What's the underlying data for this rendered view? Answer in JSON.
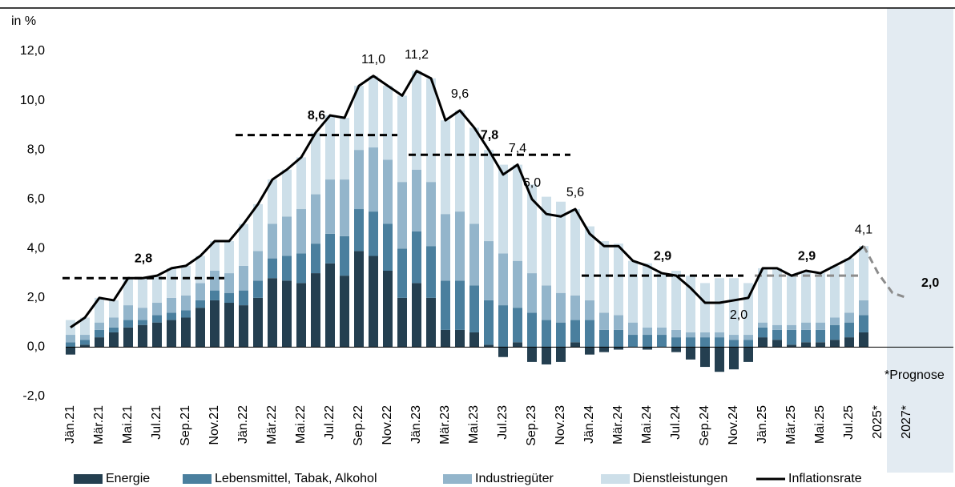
{
  "chart_data": {
    "type": "bar",
    "y_label": "in %",
    "note": "*Prognose",
    "ylim": [
      -2,
      12
    ],
    "yticks": [
      {
        "value": -2,
        "label": "-2,0"
      },
      {
        "value": 0,
        "label": "0,0"
      },
      {
        "value": 2,
        "label": "2,0"
      },
      {
        "value": 4,
        "label": "4,0"
      },
      {
        "value": 6,
        "label": "6,0"
      },
      {
        "value": 8,
        "label": "8,0"
      },
      {
        "value": 10,
        "label": "10,0"
      },
      {
        "value": 12,
        "label": "12,0"
      }
    ],
    "categories": [
      "Jän.21",
      null,
      "Mär.21",
      null,
      "Mai.21",
      null,
      "Jul.21",
      null,
      "Sep.21",
      null,
      "Nov.21",
      null,
      "Jän.22",
      null,
      "Mär.22",
      null,
      "Mai.22",
      null,
      "Jul.22",
      null,
      "Sep.22",
      null,
      "Nov.22",
      null,
      "Jän.23",
      null,
      "Mär.23",
      null,
      "Mai.23",
      null,
      "Jul.23",
      null,
      "Sep.23",
      null,
      "Nov.23",
      null,
      "Jän.24",
      null,
      "Mär.24",
      null,
      "Mai.24",
      null,
      "Jul.24",
      null,
      "Sep.24",
      null,
      "Nov.24",
      null,
      "Jän.25",
      null,
      "Mär.25",
      null,
      "Mai.25",
      null,
      "Jul.25",
      null,
      "2025*",
      null,
      "2027*"
    ],
    "series": [
      {
        "name": "Energie",
        "type": "bar",
        "color": "#243f50",
        "values": [
          -0.3,
          0.1,
          0.4,
          0.6,
          0.8,
          0.9,
          1.0,
          1.1,
          1.2,
          1.6,
          1.9,
          1.8,
          1.7,
          2.0,
          2.8,
          2.7,
          2.6,
          3.0,
          3.4,
          2.9,
          3.9,
          3.7,
          3.1,
          2.0,
          2.6,
          2.0,
          0.7,
          0.7,
          0.6,
          0.1,
          -0.4,
          0.2,
          -0.6,
          -0.7,
          -0.6,
          0.2,
          -0.3,
          -0.2,
          -0.1,
          0,
          -0.1,
          0,
          -0.2,
          -0.5,
          -0.8,
          -1.0,
          -0.9,
          -0.6,
          0.4,
          0.3,
          0.1,
          0.2,
          0.2,
          0.3,
          0.4,
          0.6,
          null,
          null,
          null
        ]
      },
      {
        "name": "Lebensmittel, Tabak, Alkohol",
        "type": "bar",
        "color": "#4a7f9e",
        "values": [
          0.2,
          0.2,
          0.3,
          0.2,
          0.3,
          0.2,
          0.3,
          0.3,
          0.3,
          0.3,
          0.4,
          0.4,
          0.6,
          0.7,
          0.8,
          1.0,
          1.2,
          1.2,
          1.2,
          1.6,
          1.7,
          1.8,
          1.9,
          2.0,
          2.1,
          2.1,
          2.0,
          2.0,
          1.9,
          1.8,
          1.7,
          1.4,
          1.4,
          1.1,
          1.0,
          0.9,
          1.1,
          0.7,
          0.7,
          0.5,
          0.5,
          0.5,
          0.4,
          0.4,
          0.4,
          0.4,
          0.3,
          0.3,
          0.4,
          0.4,
          0.6,
          0.5,
          0.5,
          0.6,
          0.6,
          0.7,
          null,
          null,
          null
        ]
      },
      {
        "name": "Industriegüter",
        "type": "bar",
        "color": "#93b5cb",
        "values": [
          0.3,
          0.2,
          0.3,
          0.4,
          0.6,
          0.5,
          0.5,
          0.6,
          0.6,
          0.7,
          0.8,
          0.8,
          1.0,
          1.2,
          1.4,
          1.6,
          1.8,
          2.0,
          2.2,
          2.3,
          2.4,
          2.6,
          2.6,
          2.7,
          2.5,
          2.6,
          2.7,
          2.8,
          2.5,
          2.4,
          2.1,
          1.9,
          1.6,
          1.4,
          1.2,
          1.0,
          0.8,
          0.7,
          0.6,
          0.5,
          0.3,
          0.3,
          0.3,
          0.2,
          0.2,
          0.2,
          0.2,
          0.2,
          0.2,
          0.2,
          0.2,
          0.3,
          0.3,
          0.3,
          0.4,
          0.6,
          null,
          null,
          null
        ]
      },
      {
        "name": "Dienstleistungen",
        "type": "bar",
        "color": "#cddfe9",
        "values": [
          0.6,
          0.7,
          1.0,
          0.7,
          1.1,
          1.2,
          1.1,
          1.2,
          1.2,
          1.1,
          1.2,
          1.3,
          1.7,
          1.9,
          1.8,
          1.9,
          2.1,
          2.5,
          2.6,
          2.5,
          2.6,
          2.9,
          3.0,
          3.5,
          4.0,
          4.2,
          3.8,
          4.1,
          3.9,
          3.7,
          3.6,
          3.9,
          3.6,
          3.6,
          3.7,
          3.5,
          3.0,
          2.9,
          2.9,
          2.5,
          2.6,
          2.2,
          2.4,
          2.3,
          2.0,
          2.2,
          2.3,
          2.1,
          2.2,
          2.3,
          2.0,
          2.1,
          2.0,
          2.1,
          2.2,
          2.2,
          null,
          null,
          null
        ]
      },
      {
        "name": "Inflationsrate",
        "type": "line",
        "color": "#000000",
        "values": [
          0.8,
          1.2,
          2.0,
          1.9,
          2.8,
          2.8,
          2.9,
          3.2,
          3.3,
          3.7,
          4.3,
          4.3,
          5.0,
          5.8,
          6.8,
          7.2,
          7.7,
          8.7,
          9.4,
          9.3,
          10.6,
          11.0,
          10.6,
          10.2,
          11.2,
          10.9,
          9.2,
          9.6,
          8.9,
          8.0,
          7.0,
          7.4,
          6.0,
          5.4,
          5.3,
          5.6,
          4.6,
          4.1,
          4.1,
          3.5,
          3.3,
          3.0,
          2.9,
          2.4,
          1.8,
          1.8,
          1.9,
          2.0,
          3.2,
          3.2,
          2.9,
          3.1,
          3.0,
          3.3,
          3.6,
          4.1,
          null,
          null,
          null
        ],
        "value_labels": [
          null,
          null,
          null,
          null,
          null,
          null,
          null,
          null,
          null,
          null,
          null,
          null,
          null,
          null,
          null,
          null,
          null,
          null,
          null,
          null,
          null,
          "11,0",
          null,
          null,
          "11,2",
          null,
          null,
          "9,6",
          null,
          null,
          null,
          "7,4",
          "6,0",
          null,
          null,
          "5,6",
          null,
          null,
          null,
          null,
          null,
          null,
          null,
          null,
          null,
          null,
          null,
          "2,0",
          null,
          null,
          null,
          null,
          null,
          null,
          null,
          "4,1",
          null,
          null,
          null
        ]
      },
      {
        "type": "line",
        "dashed": true,
        "color": "#8c8c8c",
        "values": [
          null,
          null,
          null,
          null,
          null,
          null,
          null,
          null,
          null,
          null,
          null,
          null,
          null,
          null,
          null,
          null,
          null,
          null,
          null,
          null,
          null,
          null,
          null,
          null,
          null,
          null,
          null,
          null,
          null,
          null,
          null,
          null,
          null,
          null,
          null,
          null,
          null,
          null,
          null,
          null,
          null,
          null,
          null,
          null,
          null,
          null,
          null,
          null,
          null,
          null,
          null,
          null,
          null,
          null,
          null,
          4.1,
          3.0,
          2.2,
          2.0
        ],
        "value_labels": [
          null,
          null,
          null,
          null,
          null,
          null,
          null,
          null,
          null,
          null,
          null,
          null,
          null,
          null,
          null,
          null,
          null,
          null,
          null,
          null,
          null,
          null,
          null,
          null,
          null,
          null,
          null,
          null,
          null,
          null,
          null,
          null,
          null,
          null,
          null,
          null,
          null,
          null,
          null,
          null,
          null,
          null,
          null,
          null,
          null,
          null,
          null,
          null,
          null,
          null,
          null,
          null,
          null,
          null,
          null,
          null,
          null,
          null,
          "2,0"
        ]
      }
    ],
    "averages": [
      {
        "value": 2.8,
        "label": "2,8",
        "color": "#000000"
      },
      {
        "value": 8.6,
        "label": "8,6",
        "color": "#000000"
      },
      {
        "value": 7.8,
        "label": "7,8",
        "color": "#000000"
      },
      {
        "value": 2.9,
        "label": "2,9",
        "color": "#000000"
      },
      {
        "value": 2.9,
        "label": "2,9",
        "color": "#8c8c8c"
      }
    ]
  }
}
